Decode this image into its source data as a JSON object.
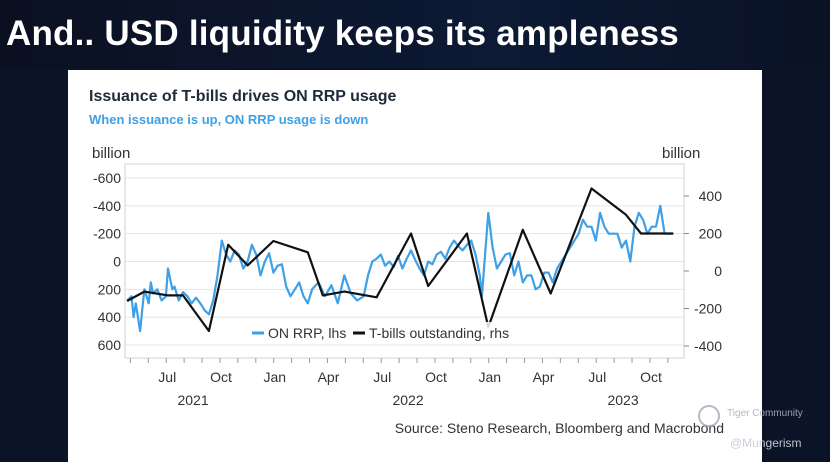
{
  "slide": {
    "title": "And.. USD liquidity keeps its ampleness"
  },
  "watermark": {
    "community": "Tiger Community",
    "handle": "@Mungerism"
  },
  "colors": {
    "on_rrp": "#3ea0e6",
    "tbills": "#111111",
    "background": "#0b1426"
  },
  "chart_data": {
    "type": "line",
    "title": "Issuance of T-bills drives ON RRP usage",
    "subtitle": "When issuance is up, ON RRP usage is down",
    "left_axis_label": "billion",
    "right_axis_label": "billion",
    "left_ticks": [
      "-600",
      "-400",
      "-200",
      "0",
      "200",
      "400",
      "600"
    ],
    "left_tick_values": [
      -600,
      -400,
      -200,
      0,
      200,
      400,
      600
    ],
    "left_ylim": [
      -600,
      600
    ],
    "left_inverted": true,
    "right_ticks": [
      "400",
      "200",
      "0",
      "-200",
      "-400"
    ],
    "right_tick_values": [
      400,
      200,
      0,
      -200,
      -400
    ],
    "right_ylim": [
      -400,
      500
    ],
    "month_labels": [
      "Jul",
      "Oct",
      "Jan",
      "Apr",
      "Jul",
      "Oct",
      "Jan",
      "Apr",
      "Jul",
      "Oct"
    ],
    "month_positions": [
      2021.5,
      2021.75,
      2022.0,
      2022.25,
      2022.5,
      2022.75,
      2023.0,
      2023.25,
      2023.5,
      2023.75
    ],
    "year_labels": [
      "2021",
      "2022",
      "2023"
    ],
    "year_positions": [
      2021.62,
      2022.62,
      2023.62
    ],
    "xlim": [
      2021.35,
      2023.95
    ],
    "grid": true,
    "legend": "bottom-left",
    "source": "Source: Steno Research, Bloomberg and Macrobond",
    "series": [
      {
        "name": "ON RRP, lhs",
        "axis": "left",
        "x": [
          2021.36,
          2021.38,
          2021.39,
          2021.4,
          2021.42,
          2021.43,
          2021.44,
          2021.46,
          2021.47,
          2021.48,
          2021.5,
          2021.52,
          2021.54,
          2021.55,
          2021.57,
          2021.58,
          2021.6,
          2021.62,
          2021.64,
          2021.66,
          2021.68,
          2021.7,
          2021.72,
          2021.74,
          2021.76,
          2021.78,
          2021.8,
          2021.82,
          2021.84,
          2021.86,
          2021.88,
          2021.9,
          2021.92,
          2021.94,
          2021.96,
          2021.98,
          2022.0,
          2022.02,
          2022.04,
          2022.06,
          2022.08,
          2022.1,
          2022.12,
          2022.14,
          2022.16,
          2022.18,
          2022.2,
          2022.22,
          2022.25,
          2022.28,
          2022.31,
          2022.34,
          2022.37,
          2022.4,
          2022.43,
          2022.46,
          2022.48,
          2022.5,
          2022.52,
          2022.54,
          2022.56,
          2022.58,
          2022.6,
          2022.62,
          2022.64,
          2022.66,
          2022.68,
          2022.7,
          2022.72,
          2022.74,
          2022.76,
          2022.78,
          2022.8,
          2022.82,
          2022.84,
          2022.86,
          2022.88,
          2022.9,
          2022.92,
          2022.94,
          2022.96,
          2022.98,
          2023.0,
          2023.01,
          2023.02,
          2023.04,
          2023.06,
          2023.08,
          2023.1,
          2023.12,
          2023.14,
          2023.16,
          2023.18,
          2023.2,
          2023.22,
          2023.24,
          2023.26,
          2023.28,
          2023.3,
          2023.32,
          2023.34,
          2023.36,
          2023.38,
          2023.4,
          2023.42,
          2023.44,
          2023.46,
          2023.48,
          2023.5,
          2023.52,
          2023.54,
          2023.56,
          2023.58,
          2023.6,
          2023.62,
          2023.64,
          2023.66,
          2023.68,
          2023.7,
          2023.72,
          2023.74,
          2023.76,
          2023.78,
          2023.8,
          2023.82,
          2023.84,
          2023.86,
          2023.88,
          2023.9
        ],
        "values": [
          280,
          250,
          400,
          300,
          500,
          350,
          200,
          300,
          150,
          230,
          200,
          280,
          250,
          50,
          200,
          180,
          280,
          220,
          250,
          300,
          260,
          300,
          350,
          380,
          280,
          100,
          -150,
          -50,
          0,
          -80,
          -50,
          50,
          0,
          -120,
          -50,
          100,
          0,
          -60,
          80,
          30,
          20,
          180,
          250,
          200,
          150,
          250,
          300,
          200,
          150,
          250,
          170,
          300,
          100,
          230,
          280,
          250,
          100,
          0,
          -20,
          -50,
          30,
          0,
          40,
          -40,
          50,
          -20,
          -80,
          -10,
          50,
          100,
          0,
          20,
          -50,
          -70,
          -20,
          -100,
          -150,
          -110,
          -80,
          -120,
          -150,
          -50,
          100,
          250,
          50,
          -350,
          -100,
          50,
          0,
          -50,
          -60,
          100,
          0,
          150,
          100,
          100,
          200,
          180,
          80,
          80,
          150,
          50,
          0,
          -50,
          -100,
          -150,
          -200,
          -300,
          -250,
          -250,
          -150,
          -350,
          -250,
          -200,
          -200,
          -200,
          -100,
          -150,
          0,
          -250,
          -350,
          -300,
          -200,
          -250,
          -250,
          -400,
          -200,
          -200,
          -200
        ]
      },
      {
        "name": "T-bills outstanding, rhs",
        "axis": "right",
        "x": [
          2021.36,
          2021.44,
          2021.55,
          2021.62,
          2021.74,
          2021.83,
          2021.92,
          2022.04,
          2022.2,
          2022.27,
          2022.37,
          2022.52,
          2022.68,
          2022.76,
          2022.94,
          2023.04,
          2023.2,
          2023.33,
          2023.52,
          2023.68,
          2023.75,
          2023.9
        ],
        "values": [
          -160,
          -110,
          -130,
          -130,
          -320,
          140,
          30,
          160,
          100,
          -130,
          -110,
          -140,
          200,
          -80,
          200,
          -300,
          220,
          -120,
          440,
          300,
          200,
          200
        ]
      }
    ]
  }
}
